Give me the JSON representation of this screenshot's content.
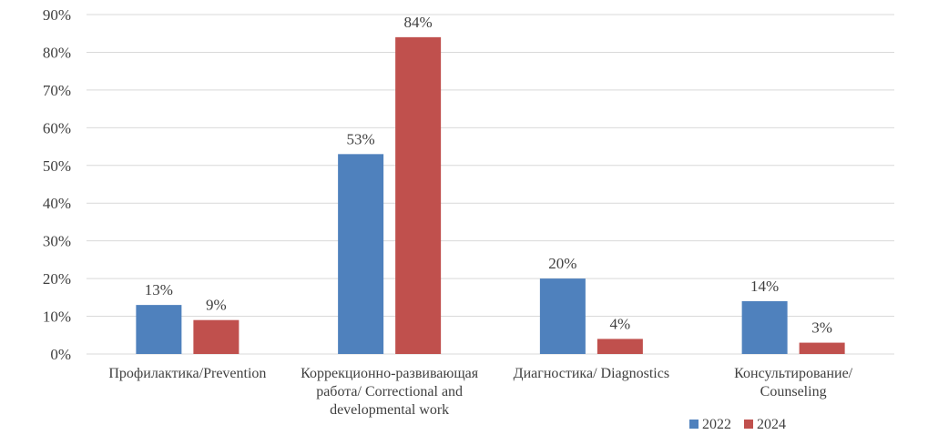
{
  "chart_data": {
    "type": "bar",
    "categories": [
      [
        "Профилактика/Prevention"
      ],
      [
        "Коррекционно-развивающая",
        "работа/ Correctional and",
        "developmental work"
      ],
      [
        "Диагностика/ Diagnostics"
      ],
      [
        "Консультирование/",
        "Counseling"
      ]
    ],
    "series": [
      {
        "name": "2022",
        "color": "#4f81bd",
        "values": [
          13,
          53,
          20,
          14
        ],
        "labels": [
          "13%",
          "53%",
          "20%",
          "14%"
        ]
      },
      {
        "name": "2024",
        "color": "#c0504d",
        "values": [
          9,
          84,
          4,
          3
        ],
        "labels": [
          "9%",
          "84%",
          "4%",
          "3%"
        ]
      }
    ],
    "ylim": [
      0,
      90
    ],
    "yticks": [
      0,
      10,
      20,
      30,
      40,
      50,
      60,
      70,
      80,
      90
    ],
    "ytick_labels": [
      "0%",
      "10%",
      "20%",
      "30%",
      "40%",
      "50%",
      "60%",
      "70%",
      "80%",
      "90%"
    ],
    "grid": true,
    "legend_position": "bottom-right",
    "title": "",
    "xlabel": "",
    "ylabel": ""
  }
}
